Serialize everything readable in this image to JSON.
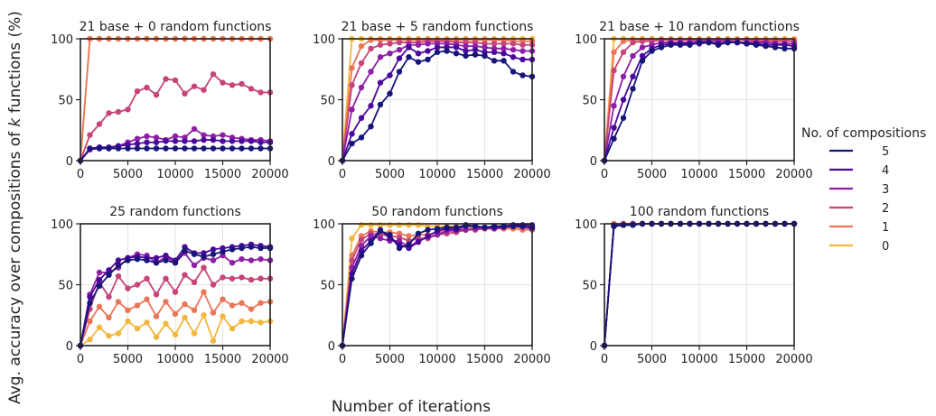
{
  "figure": {
    "ylabel_prefix": "Avg. accuracy over compositions of ",
    "ylabel_italic": "k",
    "ylabel_suffix": " functions (%)",
    "xlabel": "Number of iterations",
    "legend_title": "No. of compositions",
    "legend_entries": [
      "5",
      "4",
      "3",
      "2",
      "1",
      "0"
    ],
    "colors": {
      "5": "#18157a",
      "4": "#4c079c",
      "3": "#8e1fa6",
      "2": "#c74479",
      "1": "#ea7658",
      "0": "#f4b73e"
    },
    "xticks": [
      "0",
      "5000",
      "10000",
      "15000",
      "20000"
    ],
    "yticks": [
      "0",
      "50",
      "100"
    ]
  },
  "chart_data": [
    {
      "type": "line",
      "title": "21 base + 0 random functions",
      "xlim": [
        0,
        20000
      ],
      "ylim": [
        0,
        100
      ],
      "grid": false,
      "x": [
        0,
        1000,
        2000,
        3000,
        4000,
        5000,
        6000,
        7000,
        8000,
        9000,
        10000,
        11000,
        12000,
        13000,
        14000,
        15000,
        16000,
        17000,
        18000,
        19000,
        20000
      ],
      "series": [
        {
          "name": "5",
          "values": [
            0,
            10,
            10,
            10,
            10,
            10,
            10,
            10,
            10,
            10,
            10,
            10,
            10,
            10,
            10,
            10,
            10,
            10,
            10,
            10,
            10
          ]
        },
        {
          "name": "4",
          "values": [
            0,
            10,
            11,
            11,
            12,
            13,
            14,
            15,
            15,
            16,
            16,
            16,
            16,
            17,
            17,
            16,
            16,
            16,
            16,
            15,
            15
          ]
        },
        {
          "name": "3",
          "values": [
            0,
            9,
            10,
            10,
            12,
            15,
            18,
            20,
            19,
            17,
            20,
            19,
            26,
            21,
            20,
            21,
            19,
            18,
            17,
            17,
            16
          ]
        },
        {
          "name": "2",
          "values": [
            0,
            21,
            30,
            39,
            40,
            42,
            57,
            60,
            54,
            67,
            66,
            55,
            61,
            58,
            71,
            64,
            62,
            63,
            59,
            56,
            56
          ]
        },
        {
          "name": "1",
          "values": [
            0,
            100,
            100,
            100,
            100,
            100,
            100,
            100,
            100,
            100,
            100,
            100,
            100,
            100,
            100,
            100,
            100,
            100,
            100,
            100,
            100
          ]
        },
        {
          "name": "0",
          "values": [
            0,
            100,
            100,
            100,
            100,
            100,
            100,
            100,
            100,
            100,
            100,
            100,
            100,
            100,
            100,
            100,
            100,
            100,
            100,
            100,
            100
          ]
        }
      ]
    },
    {
      "type": "line",
      "title": "21 base + 5 random functions",
      "xlim": [
        0,
        20000
      ],
      "ylim": [
        0,
        100
      ],
      "grid": true,
      "x": [
        0,
        1000,
        2000,
        3000,
        4000,
        5000,
        6000,
        7000,
        8000,
        9000,
        10000,
        11000,
        12000,
        13000,
        14000,
        15000,
        16000,
        17000,
        18000,
        19000,
        20000
      ],
      "series": [
        {
          "name": "5",
          "values": [
            0,
            14,
            19,
            28,
            46,
            55,
            73,
            85,
            81,
            83,
            89,
            90,
            88,
            86,
            87,
            86,
            82,
            82,
            73,
            70,
            69
          ]
        },
        {
          "name": "4",
          "values": [
            0,
            22,
            35,
            45,
            64,
            70,
            84,
            93,
            88,
            90,
            93,
            93,
            93,
            90,
            91,
            89,
            89,
            88,
            85,
            83,
            83
          ]
        },
        {
          "name": "3",
          "values": [
            0,
            42,
            60,
            73,
            85,
            88,
            91,
            95,
            95,
            96,
            96,
            96,
            95,
            94,
            94,
            93,
            92,
            92,
            91,
            90,
            90
          ]
        },
        {
          "name": "2",
          "values": [
            0,
            62,
            80,
            92,
            95,
            96,
            97,
            97,
            97,
            98,
            98,
            98,
            97,
            97,
            97,
            96,
            96,
            96,
            96,
            95,
            95
          ]
        },
        {
          "name": "1",
          "values": [
            0,
            76,
            94,
            99,
            99,
            99,
            99,
            99,
            99,
            99,
            99,
            99,
            99,
            99,
            99,
            99,
            99,
            99,
            98,
            98,
            98
          ]
        },
        {
          "name": "0",
          "values": [
            0,
            100,
            100,
            100,
            100,
            100,
            100,
            100,
            100,
            100,
            100,
            100,
            100,
            100,
            100,
            100,
            100,
            100,
            100,
            100,
            100
          ]
        }
      ]
    },
    {
      "type": "line",
      "title": "21 base + 10 random functions",
      "xlim": [
        0,
        20000
      ],
      "ylim": [
        0,
        100
      ],
      "grid": true,
      "x": [
        0,
        1000,
        2000,
        3000,
        4000,
        5000,
        6000,
        7000,
        8000,
        9000,
        10000,
        11000,
        12000,
        13000,
        14000,
        15000,
        16000,
        17000,
        18000,
        19000,
        20000
      ],
      "series": [
        {
          "name": "5",
          "values": [
            0,
            18,
            35,
            59,
            82,
            90,
            93,
            95,
            95,
            95,
            97,
            97,
            95,
            97,
            97,
            96,
            95,
            94,
            93,
            92,
            92
          ]
        },
        {
          "name": "4",
          "values": [
            0,
            27,
            50,
            69,
            86,
            92,
            95,
            96,
            96,
            96,
            96,
            97,
            96,
            97,
            97,
            96,
            96,
            95,
            95,
            95,
            94
          ]
        },
        {
          "name": "3",
          "values": [
            0,
            45,
            69,
            86,
            93,
            95,
            97,
            97,
            97,
            97,
            98,
            98,
            98,
            98,
            97,
            97,
            97,
            97,
            96,
            96,
            96
          ]
        },
        {
          "name": "2",
          "values": [
            0,
            74,
            89,
            97,
            98,
            98,
            99,
            99,
            99,
            99,
            99,
            99,
            99,
            99,
            99,
            99,
            98,
            98,
            98,
            98,
            98
          ]
        },
        {
          "name": "1",
          "values": [
            0,
            89,
            98,
            99,
            99,
            99,
            99,
            99,
            99,
            99,
            99,
            99,
            99,
            99,
            99,
            99,
            99,
            99,
            99,
            99,
            99
          ]
        },
        {
          "name": "0",
          "values": [
            0,
            100,
            100,
            100,
            100,
            100,
            100,
            100,
            100,
            100,
            100,
            100,
            100,
            100,
            100,
            100,
            100,
            100,
            100,
            100,
            100
          ]
        }
      ]
    },
    {
      "type": "line",
      "title": "25 random functions",
      "xlim": [
        0,
        20000
      ],
      "ylim": [
        0,
        100
      ],
      "grid": true,
      "x": [
        0,
        1000,
        2000,
        3000,
        4000,
        5000,
        6000,
        7000,
        8000,
        9000,
        10000,
        11000,
        12000,
        13000,
        14000,
        15000,
        16000,
        17000,
        18000,
        19000,
        20000
      ],
      "series": [
        {
          "name": "5",
          "values": [
            0,
            35,
            49,
            58,
            66,
            70,
            71,
            70,
            68,
            70,
            68,
            78,
            75,
            73,
            75,
            77,
            79,
            80,
            81,
            80,
            80
          ]
        },
        {
          "name": "4",
          "values": [
            0,
            40,
            54,
            62,
            70,
            72,
            73,
            72,
            72,
            74,
            70,
            81,
            76,
            76,
            79,
            80,
            81,
            82,
            83,
            82,
            81
          ]
        },
        {
          "name": "3",
          "values": [
            0,
            42,
            60,
            60,
            64,
            72,
            75,
            74,
            68,
            73,
            68,
            76,
            66,
            72,
            70,
            74,
            68,
            71,
            70,
            71,
            70
          ]
        },
        {
          "name": "2",
          "values": [
            0,
            30,
            52,
            40,
            57,
            47,
            50,
            55,
            42,
            55,
            44,
            58,
            52,
            64,
            50,
            56,
            55,
            56,
            54,
            55,
            55
          ]
        },
        {
          "name": "1",
          "values": [
            0,
            20,
            32,
            23,
            36,
            29,
            33,
            38,
            24,
            36,
            26,
            34,
            29,
            44,
            27,
            38,
            33,
            35,
            30,
            35,
            36
          ]
        },
        {
          "name": "0",
          "values": [
            0,
            5,
            15,
            8,
            10,
            20,
            14,
            19,
            7,
            18,
            9,
            23,
            10,
            25,
            4,
            24,
            14,
            20,
            20,
            19,
            20
          ]
        }
      ]
    },
    {
      "type": "line",
      "title": "50 random functions",
      "xlim": [
        0,
        20000
      ],
      "ylim": [
        0,
        100
      ],
      "grid": true,
      "x": [
        0,
        1000,
        2000,
        3000,
        4000,
        5000,
        6000,
        7000,
        8000,
        9000,
        10000,
        11000,
        12000,
        13000,
        14000,
        15000,
        16000,
        17000,
        18000,
        19000,
        20000
      ],
      "series": [
        {
          "name": "5",
          "values": [
            0,
            55,
            74,
            84,
            94,
            91,
            80,
            83,
            92,
            95,
            96,
            97,
            97,
            99,
            98,
            97,
            98,
            98,
            98,
            98,
            97
          ]
        },
        {
          "name": "4",
          "values": [
            0,
            59,
            78,
            86,
            95,
            88,
            83,
            80,
            85,
            90,
            94,
            96,
            95,
            98,
            98,
            97,
            97,
            98,
            99,
            99,
            99
          ]
        },
        {
          "name": "3",
          "values": [
            0,
            64,
            82,
            90,
            88,
            86,
            86,
            81,
            86,
            89,
            91,
            94,
            95,
            95,
            96,
            97,
            96,
            97,
            98,
            98,
            96
          ]
        },
        {
          "name": "2",
          "values": [
            0,
            70,
            87,
            92,
            91,
            90,
            89,
            86,
            88,
            88,
            91,
            92,
            93,
            95,
            95,
            96,
            96,
            98,
            98,
            97,
            96
          ]
        },
        {
          "name": "1",
          "values": [
            0,
            74,
            90,
            94,
            93,
            93,
            92,
            90,
            91,
            91,
            93,
            94,
            94,
            95,
            96,
            96,
            96,
            96,
            96,
            95,
            95
          ]
        },
        {
          "name": "0",
          "values": [
            0,
            88,
            99,
            99,
            99,
            99,
            99,
            99,
            99,
            98,
            98,
            98,
            98,
            97,
            97,
            97,
            97,
            97,
            97,
            97,
            98
          ]
        }
      ]
    },
    {
      "type": "line",
      "title": "100 random functions",
      "xlim": [
        0,
        20000
      ],
      "ylim": [
        0,
        100
      ],
      "grid": true,
      "x": [
        0,
        1000,
        2000,
        3000,
        4000,
        5000,
        6000,
        7000,
        8000,
        9000,
        10000,
        11000,
        12000,
        13000,
        14000,
        15000,
        16000,
        17000,
        18000,
        19000,
        20000
      ],
      "series": [
        {
          "name": "5",
          "values": [
            0,
            98,
            99,
            99,
            100,
            100,
            100,
            100,
            100,
            100,
            100,
            100,
            100,
            100,
            100,
            100,
            100,
            100,
            100,
            100,
            100
          ]
        },
        {
          "name": "4",
          "values": [
            0,
            98,
            99,
            99,
            100,
            100,
            100,
            100,
            100,
            100,
            100,
            100,
            100,
            100,
            100,
            100,
            100,
            100,
            100,
            100,
            100
          ]
        },
        {
          "name": "3",
          "values": [
            0,
            99,
            99,
            100,
            100,
            100,
            100,
            100,
            100,
            100,
            100,
            100,
            100,
            100,
            100,
            100,
            100,
            100,
            100,
            100,
            100
          ]
        },
        {
          "name": "2",
          "values": [
            0,
            99,
            100,
            100,
            100,
            100,
            100,
            100,
            100,
            100,
            100,
            100,
            100,
            100,
            100,
            100,
            100,
            100,
            100,
            100,
            100
          ]
        },
        {
          "name": "1",
          "values": [
            0,
            100,
            100,
            100,
            100,
            100,
            100,
            100,
            100,
            100,
            100,
            100,
            100,
            100,
            100,
            100,
            100,
            100,
            100,
            100,
            100
          ]
        },
        {
          "name": "0",
          "values": [
            0,
            100,
            100,
            100,
            100,
            100,
            100,
            100,
            100,
            100,
            100,
            100,
            100,
            100,
            100,
            100,
            100,
            100,
            100,
            100,
            100
          ]
        }
      ]
    }
  ]
}
